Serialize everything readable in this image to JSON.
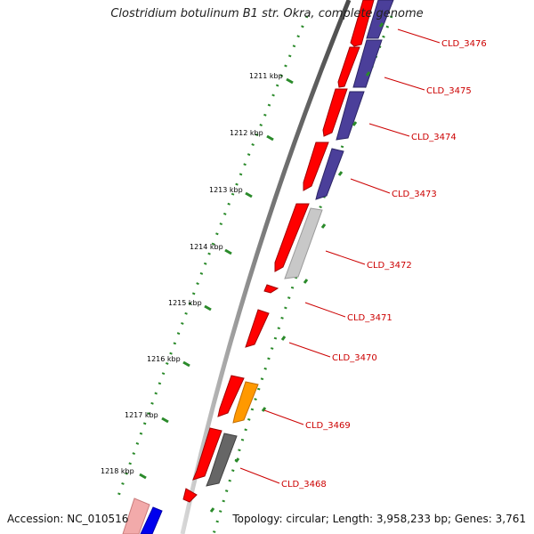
{
  "title": "Clostridium botulinum B1 str. Okra, complete genome",
  "accession_text": "Accession: NC_010516",
  "topology_text": "Topology: circular; Length: 3,958,233 bp; Genes: 3,761",
  "colors": {
    "forward_cds": "#ff0000",
    "reverse_blue": "#4b3f9a",
    "reverse_light_gray": "#c8c8c8",
    "reverse_dark_gray": "#666666",
    "reverse_orange": "#ff9900",
    "label_red": "#cc0000",
    "tick_green": "#2a8a2a",
    "backbone_gray": "#8a8a8a"
  },
  "kbp_ticks": [
    {
      "label": "1211 kbp"
    },
    {
      "label": "1212 kbp"
    },
    {
      "label": "1213 kbp"
    },
    {
      "label": "1214 kbp"
    },
    {
      "label": "1215 kbp"
    },
    {
      "label": "1216 kbp"
    },
    {
      "label": "1217 kbp"
    },
    {
      "label": "1218 kbp"
    }
  ],
  "genes": [
    {
      "label": "CLD_3476"
    },
    {
      "label": "CLD_3475"
    },
    {
      "label": "CLD_3474"
    },
    {
      "label": "CLD_3473"
    },
    {
      "label": "CLD_3472"
    },
    {
      "label": "CLD_3471"
    },
    {
      "label": "CLD_3470"
    },
    {
      "label": "CLD_3469"
    },
    {
      "label": "CLD_3468"
    }
  ]
}
